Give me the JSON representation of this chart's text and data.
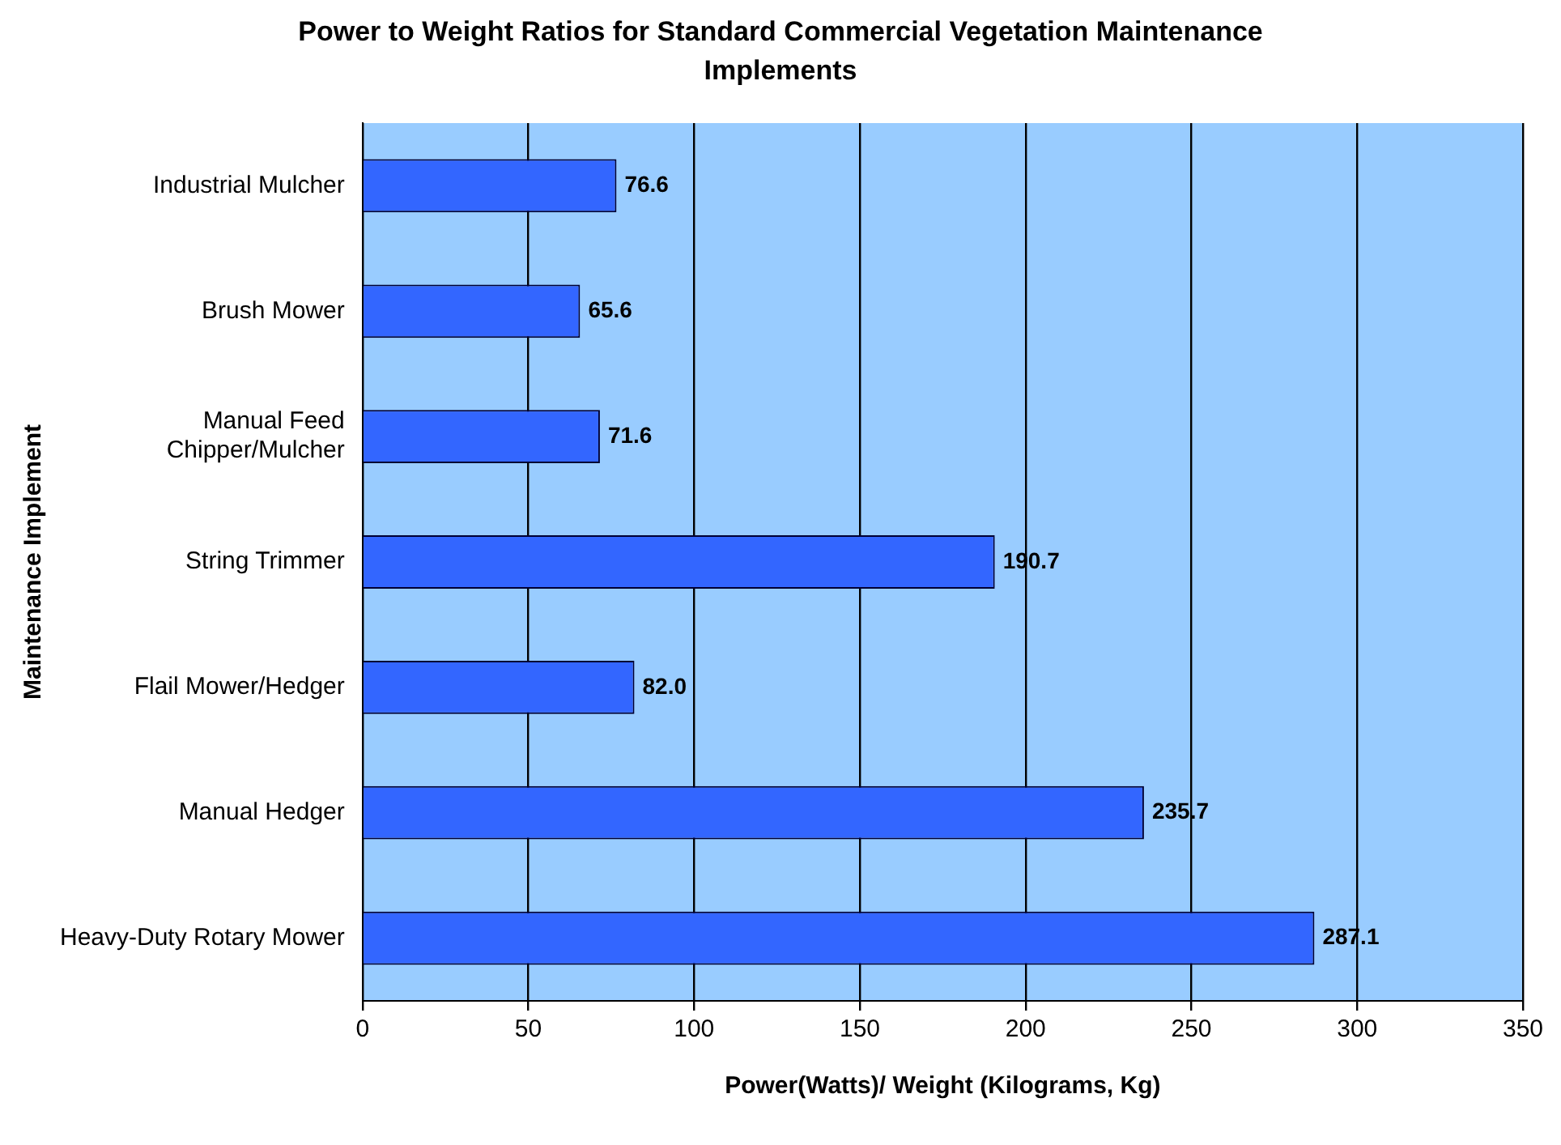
{
  "chart_data": {
    "type": "bar",
    "orientation": "horizontal",
    "title": "Power to Weight Ratios for Standard Commercial Vegetation Maintenance Implements",
    "xlabel": "Power(Watts)/ Weight (Kilograms, Kg)",
    "ylabel": "Maintenance Implement",
    "categories": [
      "Industrial Mulcher",
      "Brush Mower",
      "Manual Feed\nChipper/Mulcher",
      "String Trimmer",
      "Flail Mower/Hedger",
      "Manual Hedger",
      "Heavy-Duty Rotary Mower"
    ],
    "values": [
      76.6,
      65.6,
      71.6,
      190.7,
      82.0,
      235.7,
      287.1
    ],
    "value_labels": [
      "76.6",
      "65.6",
      "71.6",
      "190.7",
      "82.0",
      "235.7",
      "287.1"
    ],
    "color": "#3366ff",
    "xlim": [
      0,
      350
    ],
    "xticks": [
      0,
      50,
      100,
      150,
      200,
      250,
      300,
      350
    ],
    "grid": "x",
    "legend": false
  }
}
